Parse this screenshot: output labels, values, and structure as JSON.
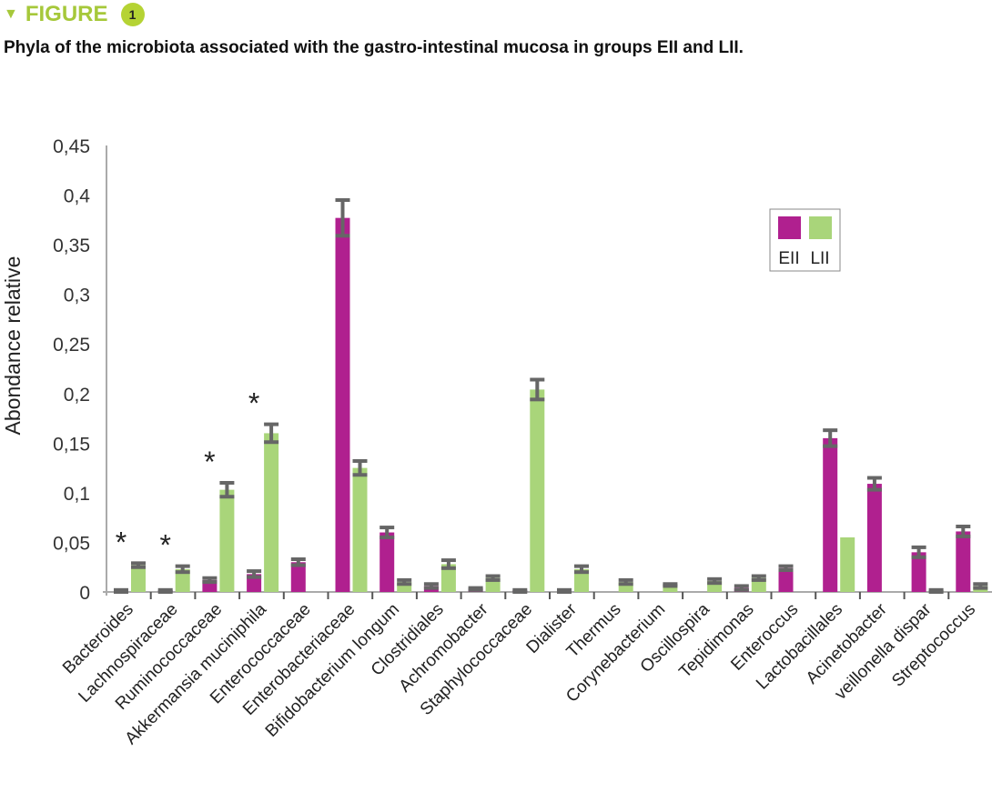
{
  "header": {
    "label": "FIGURE",
    "number": "1"
  },
  "chart_data": {
    "type": "bar",
    "title": "Phyla of the microbiota associated with the gastro-intestinal mucosa in groups EII and LII.",
    "xlabel": "",
    "ylabel": "Abondance relative",
    "ylim": [
      0,
      0.45
    ],
    "yticks": [
      "0",
      "0,05",
      "0,1",
      "0,15",
      "0,2",
      "0,25",
      "0,3",
      "0,35",
      "0,4",
      "0,45"
    ],
    "legend_position": "top-right",
    "colors": {
      "EII": "#b0208f",
      "LII": "#a9d57a",
      "error": "#666666"
    },
    "categories": [
      "Bacteroides",
      "Lachnospiraceae",
      "Ruminococcaceae",
      "Akkermansia muciniphila",
      "Enterococcaceae",
      "Enterobacteriaceae",
      "Bifidobacterium longum",
      "Clostridiales",
      "Achromobacter",
      "Staphylococcaceae",
      "Dialister",
      "Thermus",
      "Corynebacterium",
      "Oscillospira",
      "Tepidimonas",
      "Enteroccus",
      "Lactobacillales",
      "Acinetobacter",
      "veillonella dispar",
      "Streptococcus"
    ],
    "significant": [
      "*",
      "*",
      "*",
      "*",
      "",
      "",
      "",
      "",
      "",
      "",
      "",
      "",
      "",
      "",
      "",
      "",
      "",
      "",
      "",
      ""
    ],
    "series": [
      {
        "name": "EII",
        "values": [
          0.001,
          0.001,
          0.012,
          0.018,
          0.03,
          0.377,
          0.06,
          0.006,
          0.003,
          0.001,
          0.001,
          0,
          0,
          0,
          0.004,
          0.024,
          0.155,
          0.109,
          0.04,
          0.061
        ],
        "errors": [
          0.001,
          0.001,
          0.002,
          0.003,
          0.003,
          0.018,
          0.005,
          0.002,
          0.001,
          0.001,
          0.001,
          0,
          0,
          0,
          0.002,
          0.002,
          0.008,
          0.006,
          0.005,
          0.005
        ]
      },
      {
        "name": "LII",
        "values": [
          0.027,
          0.023,
          0.103,
          0.16,
          0,
          0.125,
          0.01,
          0.028,
          0.014,
          0.204,
          0.023,
          0.01,
          0.007,
          0.011,
          0.014,
          0,
          0.055,
          0,
          0.001,
          0.006
        ],
        "errors": [
          0.002,
          0.003,
          0.007,
          0.009,
          0,
          0.007,
          0.002,
          0.004,
          0.002,
          0.01,
          0.003,
          0.002,
          0.001,
          0.002,
          0.002,
          0,
          0,
          0,
          0.001,
          0.002
        ]
      }
    ]
  }
}
